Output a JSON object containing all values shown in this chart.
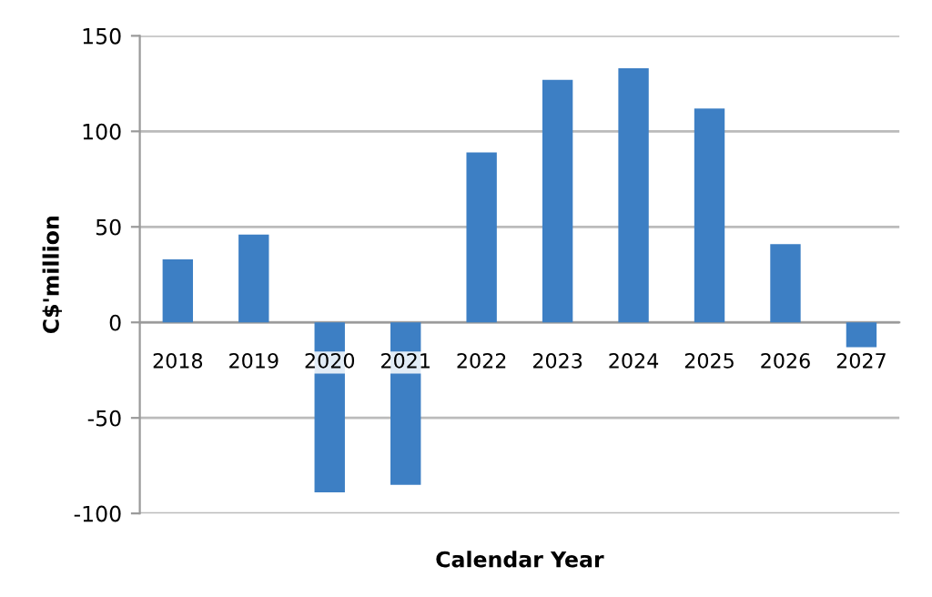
{
  "chart_data": {
    "type": "bar",
    "xlabel": "Calendar Year",
    "ylabel": "C$'million",
    "categories": [
      "2018",
      "2019",
      "2020",
      "2021",
      "2022",
      "2023",
      "2024",
      "2025",
      "2026",
      "2027"
    ],
    "values": [
      33,
      46,
      -89,
      -85,
      89,
      127,
      133,
      112,
      41,
      -13
    ],
    "color": "#3d7fc4",
    "ylim": [
      -100,
      150
    ],
    "yticks": [
      -100,
      -50,
      0,
      50,
      100,
      150
    ],
    "grid": "y"
  }
}
